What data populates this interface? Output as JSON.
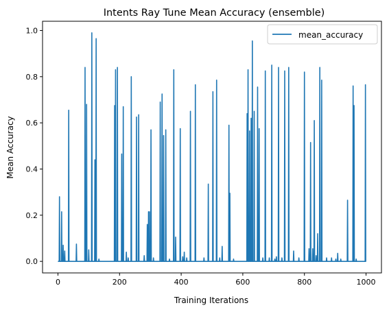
{
  "chart_data": {
    "type": "line",
    "title": "Intents Ray Tune Mean Accuracy (ensemble)",
    "xlabel": "Training Iterations",
    "ylabel": "Mean Accuracy",
    "xlim": [
      -50,
      1050
    ],
    "ylim": [
      -0.05,
      1.04
    ],
    "xticks": [
      0,
      200,
      400,
      600,
      800,
      1000
    ],
    "yticks": [
      0.0,
      0.2,
      0.4,
      0.6,
      0.8,
      1.0
    ],
    "xtick_labels": [
      "0",
      "200",
      "400",
      "600",
      "800",
      "1000"
    ],
    "ytick_labels": [
      "0.0",
      "0.2",
      "0.4",
      "0.6",
      "0.8",
      "1.0"
    ],
    "grid": false,
    "legend": {
      "position": "top-right"
    },
    "series": [
      {
        "name": "mean_accuracy",
        "color": "#1f77b4",
        "baseline": 0.0,
        "peaks": [
          [
            5,
            0.28
          ],
          [
            12,
            0.215
          ],
          [
            17,
            0.07
          ],
          [
            22,
            0.045
          ],
          [
            35,
            0.655
          ],
          [
            60,
            0.075
          ],
          [
            88,
            0.84
          ],
          [
            93,
            0.68
          ],
          [
            100,
            0.05
          ],
          [
            110,
            0.99
          ],
          [
            120,
            0.44
          ],
          [
            124,
            0.965
          ],
          [
            133,
            0.01
          ],
          [
            184,
            0.675
          ],
          [
            187,
            0.83
          ],
          [
            193,
            0.84
          ],
          [
            207,
            0.465
          ],
          [
            212,
            0.67
          ],
          [
            222,
            0.04
          ],
          [
            228,
            0.015
          ],
          [
            238,
            0.8
          ],
          [
            255,
            0.625
          ],
          [
            262,
            0.635
          ],
          [
            280,
            0.025
          ],
          [
            290,
            0.16
          ],
          [
            294,
            0.215
          ],
          [
            297,
            0.215
          ],
          [
            302,
            0.57
          ],
          [
            310,
            0.015
          ],
          [
            332,
            0.69
          ],
          [
            338,
            0.725
          ],
          [
            343,
            0.545
          ],
          [
            350,
            0.57
          ],
          [
            362,
            0.01
          ],
          [
            376,
            0.83
          ],
          [
            382,
            0.105
          ],
          [
            397,
            0.575
          ],
          [
            405,
            0.02
          ],
          [
            410,
            0.04
          ],
          [
            418,
            0.015
          ],
          [
            430,
            0.65
          ],
          [
            446,
            0.765
          ],
          [
            474,
            0.015
          ],
          [
            488,
            0.335
          ],
          [
            503,
            0.735
          ],
          [
            515,
            0.785
          ],
          [
            525,
            0.015
          ],
          [
            533,
            0.065
          ],
          [
            555,
            0.59
          ],
          [
            558,
            0.295
          ],
          [
            570,
            0.01
          ],
          [
            614,
            0.64
          ],
          [
            617,
            0.83
          ],
          [
            622,
            0.565
          ],
          [
            627,
            0.62
          ],
          [
            631,
            0.955
          ],
          [
            637,
            0.65
          ],
          [
            648,
            0.755
          ],
          [
            653,
            0.575
          ],
          [
            665,
            0.015
          ],
          [
            673,
            0.825
          ],
          [
            686,
            0.015
          ],
          [
            694,
            0.85
          ],
          [
            704,
            0.01
          ],
          [
            709,
            0.02
          ],
          [
            716,
            0.84
          ],
          [
            727,
            0.015
          ],
          [
            736,
            0.825
          ],
          [
            749,
            0.84
          ],
          [
            765,
            0.045
          ],
          [
            782,
            0.015
          ],
          [
            800,
            0.82
          ],
          [
            815,
            0.055
          ],
          [
            820,
            0.515
          ],
          [
            827,
            0.055
          ],
          [
            832,
            0.61
          ],
          [
            838,
            0.025
          ],
          [
            843,
            0.12
          ],
          [
            850,
            0.84
          ],
          [
            856,
            0.785
          ],
          [
            872,
            0.015
          ],
          [
            888,
            0.015
          ],
          [
            902,
            0.01
          ],
          [
            908,
            0.035
          ],
          [
            918,
            0.01
          ],
          [
            940,
            0.265
          ],
          [
            958,
            0.76
          ],
          [
            961,
            0.675
          ],
          [
            968,
            0.01
          ],
          [
            998,
            0.765
          ]
        ]
      }
    ]
  }
}
